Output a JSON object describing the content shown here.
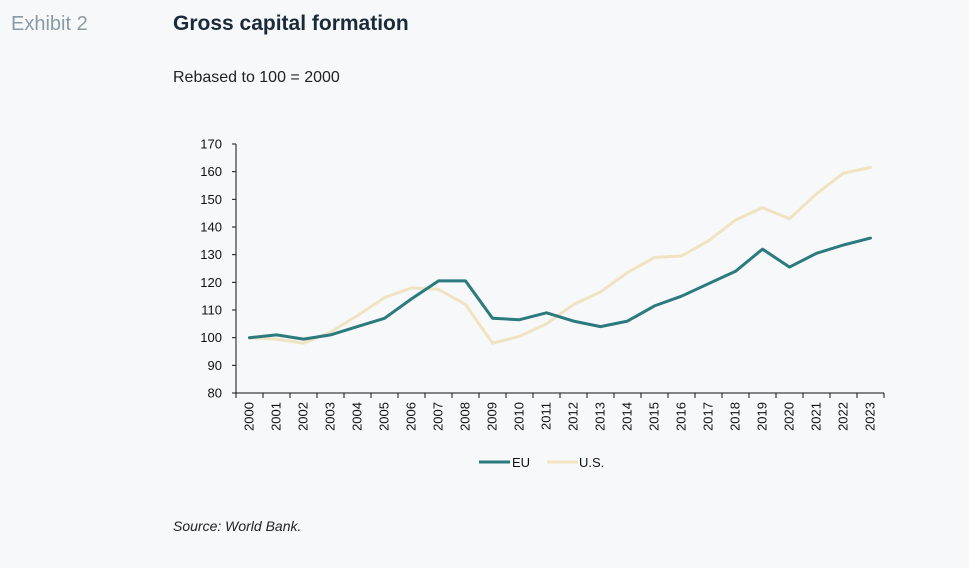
{
  "header": {
    "exhibit_label": "Exhibit 2",
    "title": "Gross capital formation",
    "subtitle": "Rebased to 100 = 2000"
  },
  "source": "Source: World Bank.",
  "chart_data": {
    "type": "line",
    "x": [
      "2000",
      "2001",
      "2002",
      "2003",
      "2004",
      "2005",
      "2006",
      "2007",
      "2008",
      "2009",
      "2010",
      "2011",
      "2012",
      "2013",
      "2014",
      "2015",
      "2016",
      "2017",
      "2018",
      "2019",
      "2020",
      "2021",
      "2022",
      "2023"
    ],
    "ylim": [
      80,
      170
    ],
    "yticks": [
      80,
      90,
      100,
      110,
      120,
      130,
      140,
      150,
      160,
      170
    ],
    "legend_position": "bottom",
    "grid": false,
    "series": [
      {
        "name": "EU",
        "color": "#2b7a7e",
        "values": [
          100,
          101,
          99.5,
          101,
          104,
          107,
          114,
          120.5,
          120.5,
          107,
          106.5,
          109,
          106,
          104,
          106,
          111.5,
          115,
          119.5,
          124,
          132,
          125.5,
          130.5,
          133.5,
          136
        ]
      },
      {
        "name": "U.S.",
        "color": "#efe3c2",
        "values": [
          100,
          99.5,
          98,
          102,
          108,
          114.5,
          118,
          117.5,
          112,
          98,
          100.5,
          105,
          112,
          116.5,
          123.5,
          129,
          129.5,
          135,
          142.5,
          147,
          143,
          152,
          159.5,
          161.5
        ]
      }
    ]
  }
}
